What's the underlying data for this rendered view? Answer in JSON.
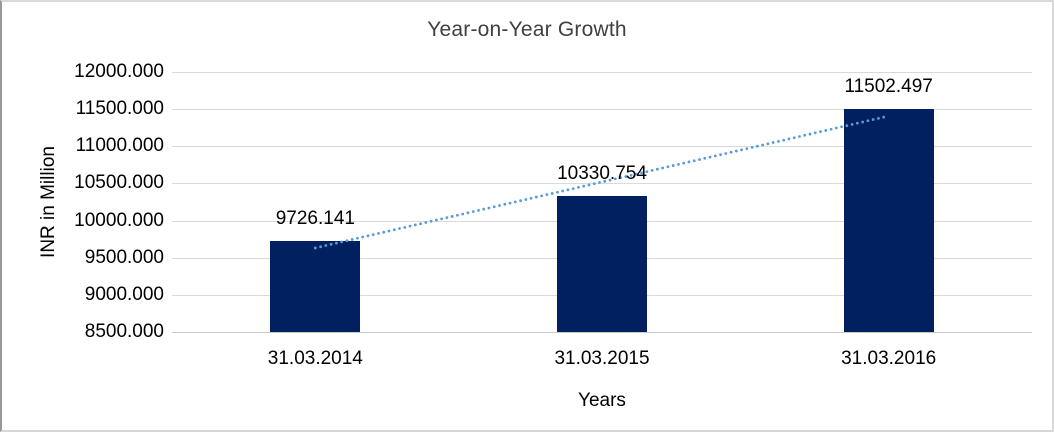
{
  "window": {
    "background": "#ffffff",
    "border_color": "#d9d9d9"
  },
  "chart_data": {
    "type": "bar",
    "title": "Year-on-Year Growth",
    "xlabel": "Years",
    "ylabel": "INR in Million",
    "categories": [
      "31.03.2014",
      "31.03.2015",
      "31.03.2016"
    ],
    "values": [
      9726.141,
      10330.754,
      11502.497
    ],
    "data_labels": [
      "9726.141",
      "10330.754",
      "11502.497"
    ],
    "ylim": [
      8500,
      12000
    ],
    "ytick_step": 500,
    "ytick_labels": [
      "8500.000",
      "9000.000",
      "9500.000",
      "10000.000",
      "10500.000",
      "11000.000",
      "11500.000",
      "12000.000"
    ],
    "grid": true,
    "legend": "none",
    "bar_color": "#002060",
    "gridline_color": "#d9d9d9",
    "axis_line_color": "#c9c9c9",
    "text_color": "#000000",
    "title_color": "#404040",
    "trendline": {
      "type": "linear",
      "style": "dotted",
      "color": "#5b9bd5",
      "start_value": 9631.6,
      "end_value": 11408.0
    }
  }
}
